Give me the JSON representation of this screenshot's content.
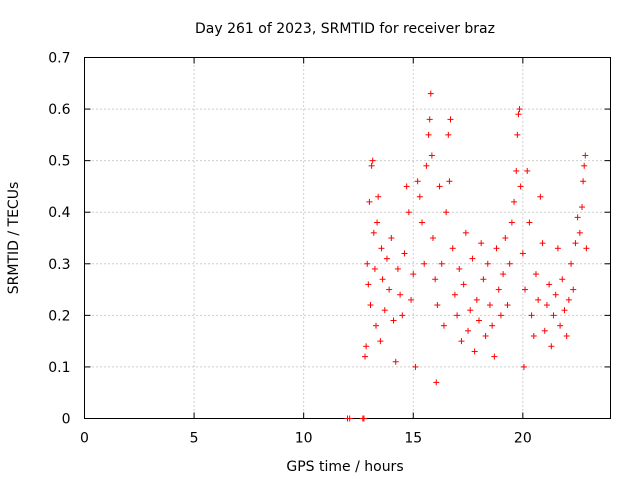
{
  "chart_data": {
    "type": "scatter",
    "title": "Day 261 of 2023, SRMTID for receiver braz",
    "xlabel": "GPS time / hours",
    "ylabel": "SRMTID / TECUs",
    "xlim": [
      0,
      24
    ],
    "ylim": [
      0,
      0.7
    ],
    "xticks": [
      0,
      5,
      10,
      15,
      20
    ],
    "xtick_labels": [
      "0",
      "5",
      "10",
      "15",
      "20"
    ],
    "yticks": [
      0,
      0.1,
      0.2,
      0.3,
      0.4,
      0.5,
      0.6,
      0.7
    ],
    "ytick_labels": [
      "0",
      "0.1",
      "0.2",
      "0.3",
      "0.4",
      "0.5",
      "0.6",
      "0.7"
    ],
    "grid": true,
    "marker": "plus",
    "marker_color": "#ff0000",
    "series": [
      {
        "name": "SRMTID",
        "points": [
          [
            12.0,
            0.0
          ],
          [
            12.1,
            0.0
          ],
          [
            12.7,
            0.0
          ],
          [
            12.75,
            0.0
          ],
          [
            12.8,
            0.12
          ],
          [
            12.85,
            0.14
          ],
          [
            12.9,
            0.3
          ],
          [
            12.95,
            0.26
          ],
          [
            13.0,
            0.42
          ],
          [
            13.05,
            0.22
          ],
          [
            13.1,
            0.49
          ],
          [
            13.15,
            0.5
          ],
          [
            13.2,
            0.36
          ],
          [
            13.25,
            0.29
          ],
          [
            13.3,
            0.18
          ],
          [
            13.35,
            0.38
          ],
          [
            13.4,
            0.43
          ],
          [
            13.5,
            0.15
          ],
          [
            13.55,
            0.33
          ],
          [
            13.6,
            0.27
          ],
          [
            13.7,
            0.21
          ],
          [
            13.8,
            0.31
          ],
          [
            13.9,
            0.25
          ],
          [
            14.0,
            0.35
          ],
          [
            14.1,
            0.19
          ],
          [
            14.2,
            0.11
          ],
          [
            14.3,
            0.29
          ],
          [
            14.4,
            0.24
          ],
          [
            14.5,
            0.2
          ],
          [
            14.6,
            0.32
          ],
          [
            14.7,
            0.45
          ],
          [
            14.8,
            0.4
          ],
          [
            14.9,
            0.23
          ],
          [
            15.0,
            0.28
          ],
          [
            15.1,
            0.1
          ],
          [
            15.2,
            0.46
          ],
          [
            15.3,
            0.43
          ],
          [
            15.4,
            0.38
          ],
          [
            15.5,
            0.3
          ],
          [
            15.6,
            0.49
          ],
          [
            15.7,
            0.55
          ],
          [
            15.75,
            0.58
          ],
          [
            15.8,
            0.63
          ],
          [
            15.85,
            0.51
          ],
          [
            15.9,
            0.35
          ],
          [
            16.0,
            0.27
          ],
          [
            16.05,
            0.07
          ],
          [
            16.1,
            0.22
          ],
          [
            16.2,
            0.45
          ],
          [
            16.3,
            0.3
          ],
          [
            16.4,
            0.18
          ],
          [
            16.5,
            0.4
          ],
          [
            16.6,
            0.55
          ],
          [
            16.65,
            0.46
          ],
          [
            16.7,
            0.58
          ],
          [
            16.8,
            0.33
          ],
          [
            16.9,
            0.24
          ],
          [
            17.0,
            0.2
          ],
          [
            17.1,
            0.29
          ],
          [
            17.2,
            0.15
          ],
          [
            17.3,
            0.26
          ],
          [
            17.4,
            0.36
          ],
          [
            17.5,
            0.17
          ],
          [
            17.6,
            0.21
          ],
          [
            17.7,
            0.31
          ],
          [
            17.8,
            0.13
          ],
          [
            17.9,
            0.23
          ],
          [
            18.0,
            0.19
          ],
          [
            18.1,
            0.34
          ],
          [
            18.2,
            0.27
          ],
          [
            18.3,
            0.16
          ],
          [
            18.4,
            0.3
          ],
          [
            18.5,
            0.22
          ],
          [
            18.6,
            0.18
          ],
          [
            18.7,
            0.12
          ],
          [
            18.8,
            0.33
          ],
          [
            18.9,
            0.25
          ],
          [
            19.0,
            0.2
          ],
          [
            19.1,
            0.28
          ],
          [
            19.2,
            0.35
          ],
          [
            19.3,
            0.22
          ],
          [
            19.4,
            0.3
          ],
          [
            19.5,
            0.38
          ],
          [
            19.6,
            0.42
          ],
          [
            19.7,
            0.48
          ],
          [
            19.75,
            0.55
          ],
          [
            19.8,
            0.59
          ],
          [
            19.85,
            0.6
          ],
          [
            19.9,
            0.45
          ],
          [
            20.0,
            0.32
          ],
          [
            20.05,
            0.1
          ],
          [
            20.1,
            0.25
          ],
          [
            20.2,
            0.48
          ],
          [
            20.3,
            0.38
          ],
          [
            20.4,
            0.2
          ],
          [
            20.5,
            0.16
          ],
          [
            20.6,
            0.28
          ],
          [
            20.7,
            0.23
          ],
          [
            20.8,
            0.43
          ],
          [
            20.9,
            0.34
          ],
          [
            21.0,
            0.17
          ],
          [
            21.1,
            0.22
          ],
          [
            21.2,
            0.26
          ],
          [
            21.3,
            0.14
          ],
          [
            21.4,
            0.2
          ],
          [
            21.5,
            0.24
          ],
          [
            21.6,
            0.33
          ],
          [
            21.7,
            0.18
          ],
          [
            21.8,
            0.27
          ],
          [
            21.9,
            0.21
          ],
          [
            22.0,
            0.16
          ],
          [
            22.1,
            0.23
          ],
          [
            22.2,
            0.3
          ],
          [
            22.3,
            0.25
          ],
          [
            22.4,
            0.34
          ],
          [
            22.5,
            0.39
          ],
          [
            22.6,
            0.36
          ],
          [
            22.7,
            0.41
          ],
          [
            22.75,
            0.46
          ],
          [
            22.8,
            0.49
          ],
          [
            22.85,
            0.51
          ],
          [
            22.9,
            0.33
          ]
        ]
      }
    ]
  }
}
